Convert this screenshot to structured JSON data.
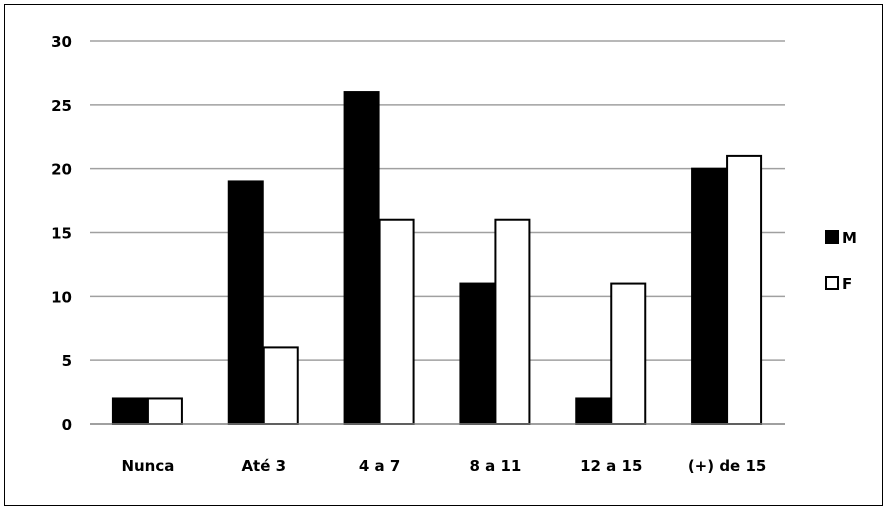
{
  "chart_data": {
    "type": "bar",
    "categories": [
      "Nunca",
      "Até 3",
      "4 a 7",
      "8 a 11",
      "12 a 15",
      "(+) de 15"
    ],
    "series": [
      {
        "name": "M",
        "values": [
          2,
          19,
          26,
          11,
          2,
          20
        ],
        "color": "#000000"
      },
      {
        "name": "F",
        "values": [
          2,
          6,
          16,
          16,
          11,
          21
        ],
        "color": "#ffffff"
      }
    ],
    "ylim": [
      0,
      30
    ],
    "yticks": [
      0,
      5,
      10,
      15,
      20,
      25,
      30
    ],
    "grid": true,
    "legend_position": "right",
    "title": "",
    "xlabel": "",
    "ylabel": ""
  }
}
